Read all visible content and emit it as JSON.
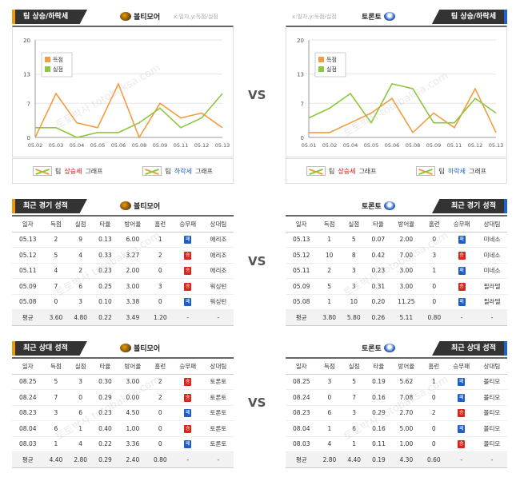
{
  "section1": {
    "left": {
      "title": "팀 상승/하락세",
      "team": "볼티모어",
      "axis_hint": "x:일자,y:득점/실점",
      "chart_data": {
        "type": "line",
        "x": [
          "05.02",
          "05.03",
          "05.04",
          "05.05",
          "05.06",
          "05.08",
          "05.09",
          "05.11",
          "05.12",
          "05.13"
        ],
        "ylim": [
          0,
          20
        ],
        "yticks": [
          0,
          7,
          13,
          20
        ],
        "series": [
          {
            "name": "득점",
            "color": "#f39c40",
            "values": [
              0,
              9,
              3,
              2,
              11,
              0,
              7,
              4,
              5,
              2
            ]
          },
          {
            "name": "실점",
            "color": "#8dc63f",
            "values": [
              2,
              2,
              0,
              1,
              1,
              3,
              6,
              2,
              4,
              9
            ]
          }
        ]
      }
    },
    "right": {
      "title": "팀 상승/하락세",
      "team": "토론토",
      "axis_hint": "x:일자,y:득점/실점",
      "chart_data": {
        "type": "line",
        "x": [
          "05.01",
          "05.02",
          "05.04",
          "05.05",
          "05.06",
          "05.08",
          "05.09",
          "05.11",
          "05.12",
          "05.13"
        ],
        "ylim": [
          0,
          20
        ],
        "yticks": [
          0,
          7,
          13,
          20
        ],
        "series": [
          {
            "name": "득점",
            "color": "#f39c40",
            "values": [
              1,
              1,
              3,
              5,
              8,
              1,
              5,
              2,
              10,
              1
            ]
          },
          {
            "name": "실점",
            "color": "#8dc63f",
            "values": [
              4,
              6,
              9,
              3,
              11,
              10,
              3,
              3,
              8,
              5
            ]
          }
        ]
      }
    },
    "legend": {
      "prefix": "팀 ",
      "up": "상승세",
      "down": "하락세",
      "suffix": " 그래프"
    },
    "vs": "VS"
  },
  "columns": [
    "일자",
    "득점",
    "실점",
    "타율",
    "방어율",
    "홈런",
    "승무패",
    "상대팀"
  ],
  "section2": {
    "title": "최근 경기 성적",
    "left": {
      "team": "볼티모어",
      "rows": [
        [
          "05.13",
          "2",
          "9",
          "0.13",
          "6.00",
          "1",
          "W",
          "애리조"
        ],
        [
          "05.12",
          "5",
          "4",
          "0.33",
          "3.27",
          "2",
          "L",
          "애리조"
        ],
        [
          "05.11",
          "4",
          "2",
          "0.23",
          "2.00",
          "0",
          "L",
          "애리조"
        ],
        [
          "05.09",
          "7",
          "6",
          "0.25",
          "3.00",
          "3",
          "L",
          "워싱턴"
        ],
        [
          "05.08",
          "0",
          "3",
          "0.10",
          "3.38",
          "0",
          "W",
          "워싱턴"
        ]
      ],
      "avg": [
        "평균",
        "3.60",
        "4.80",
        "0.22",
        "3.49",
        "1.20",
        "-",
        "-"
      ]
    },
    "right": {
      "team": "토론토",
      "rows": [
        [
          "05.13",
          "1",
          "5",
          "0.07",
          "2.00",
          "0",
          "W",
          "미네소"
        ],
        [
          "05.12",
          "10",
          "8",
          "0.42",
          "7.00",
          "3",
          "L",
          "미네소"
        ],
        [
          "05.11",
          "2",
          "3",
          "0.23",
          "3.00",
          "1",
          "W",
          "미네소"
        ],
        [
          "05.09",
          "5",
          "3",
          "0.31",
          "3.00",
          "0",
          "L",
          "필라델"
        ],
        [
          "05.08",
          "1",
          "10",
          "0.20",
          "11.25",
          "0",
          "W",
          "필라델"
        ]
      ],
      "avg": [
        "평균",
        "3.80",
        "5.80",
        "0.26",
        "5.11",
        "0.80",
        "-",
        "-"
      ]
    },
    "vs": "VS"
  },
  "section3": {
    "title": "최근 상대 성적",
    "left": {
      "team": "볼티모어",
      "rows": [
        [
          "08.25",
          "5",
          "3",
          "0.30",
          "3.00",
          "2",
          "L",
          "토론토"
        ],
        [
          "08.24",
          "7",
          "0",
          "0.29",
          "0.00",
          "2",
          "L",
          "토론토"
        ],
        [
          "08.23",
          "3",
          "6",
          "0.23",
          "4.50",
          "0",
          "W",
          "토론토"
        ],
        [
          "08.04",
          "6",
          "1",
          "0.40",
          "1.00",
          "0",
          "L",
          "토론토"
        ],
        [
          "08.03",
          "1",
          "4",
          "0.22",
          "3.36",
          "0",
          "W",
          "토론토"
        ]
      ],
      "avg": [
        "평균",
        "4.40",
        "2.80",
        "0.29",
        "2.40",
        "0.80",
        "-",
        "-"
      ]
    },
    "right": {
      "team": "토론토",
      "rows": [
        [
          "08.25",
          "3",
          "5",
          "0.19",
          "5.62",
          "1",
          "W",
          "볼티모"
        ],
        [
          "08.24",
          "0",
          "7",
          "0.16",
          "7.08",
          "0",
          "W",
          "볼티모"
        ],
        [
          "08.23",
          "6",
          "3",
          "0.29",
          "2.70",
          "2",
          "L",
          "볼티모"
        ],
        [
          "08.04",
          "1",
          "6",
          "0.16",
          "5.00",
          "0",
          "W",
          "볼티모"
        ],
        [
          "08.03",
          "4",
          "1",
          "0.11",
          "1.00",
          "0",
          "L",
          "볼티모"
        ]
      ],
      "avg": [
        "평균",
        "2.80",
        "4.40",
        "0.19",
        "4.30",
        "0.60",
        "-",
        "-"
      ]
    },
    "vs": "VS"
  },
  "result_labels": {
    "W": "패",
    "L": "승",
    "D": "무"
  },
  "watermark": "토토박사 totobaksa.com"
}
